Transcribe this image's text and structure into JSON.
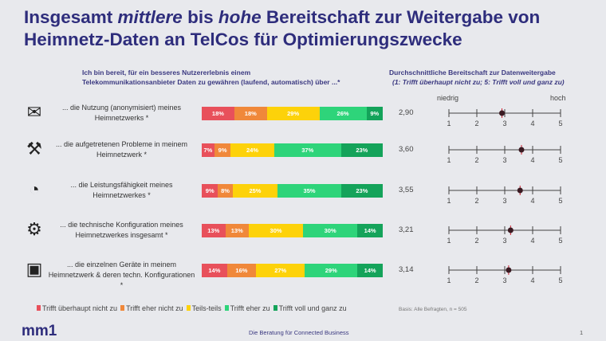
{
  "title": "Insgesamt mittlere bis hohe Bereitschaft zur Weitergabe von Heimnetz-Daten an TelCos für Optimierungszwecke",
  "title_parts": {
    "a": "Insgesamt ",
    "b": "mittlere",
    "c": " bis ",
    "d": "hohe",
    "e": " Bereitschaft zur Weitergabe von Heimnetz-Daten an TelCos für Optimierungszwecke"
  },
  "question": "Ich bin bereit, für ein besseres Nutzererlebnis einem Telekommunikationsanbieter Daten zu gewähren (laufend, automatisch) über ...*",
  "avg_title": "Durchschnittliche Bereitschaft zur Datenweitergabe",
  "avg_subtitle": "(1: Trifft überhaupt nicht zu; 5: Trifft voll und ganz zu)",
  "scale_low": "niedrig",
  "scale_high": "hoch",
  "colors": [
    "#e8505b",
    "#f0883a",
    "#fdd20a",
    "#2ed47a",
    "#14a35a"
  ],
  "chart_data": [
    {
      "type": "bar",
      "stacked": true,
      "orientation": "horizontal",
      "categories": [
        "... die Nutzung (anonymisiert) meines Heimnetzwerks *",
        "... die aufgetretenen Probleme in meinem Heimnetzwerk *",
        "... die Leistungsfähigkeit meines Heimnetzwerkes *",
        "... die technische Konfiguration meines Heimnetzwerkes insgesamt *",
        "... die einzelnen Geräte in meinem Heimnetzwerk & deren techn. Konfigurationen *"
      ],
      "icons": [
        "document-mail-icon",
        "person-tools-icon",
        "speedometer-icon",
        "gears-icon",
        "devices-icon"
      ],
      "series": [
        {
          "name": "Trifft überhaupt nicht zu",
          "values": [
            18,
            7,
            9,
            13,
            14
          ]
        },
        {
          "name": "Trifft eher nicht zu",
          "values": [
            18,
            9,
            8,
            13,
            16
          ]
        },
        {
          "name": "Teils-teils",
          "values": [
            29,
            24,
            25,
            30,
            27
          ]
        },
        {
          "name": "Trifft eher zu",
          "values": [
            26,
            37,
            35,
            30,
            29
          ]
        },
        {
          "name": "Trifft voll und ganz zu",
          "values": [
            9,
            23,
            23,
            14,
            14
          ]
        }
      ],
      "unit": "%",
      "legend": "bottom"
    },
    {
      "type": "scatter",
      "values": [
        2.9,
        3.6,
        3.55,
        3.21,
        3.14
      ],
      "labels": [
        "2,90",
        "3,60",
        "3,55",
        "3,21",
        "3,14"
      ],
      "xlim": [
        1,
        5
      ],
      "ticks": [
        "1",
        "2",
        "3",
        "4",
        "5"
      ]
    }
  ],
  "basis": "Basis: Alle Befragten, n = 505",
  "logo": "mm1",
  "footer": "Die Beratung für Connected Business",
  "page": "1"
}
